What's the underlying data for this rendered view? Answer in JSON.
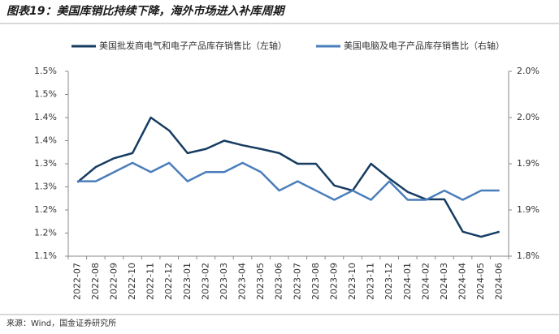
{
  "chart_data": {
    "type": "line",
    "title": "图表19：美国库销比持续下降，海外市场进入补库周期",
    "source": "来源：Wind，国金证券研究所",
    "categories": [
      "2022-07",
      "2022-08",
      "2022-09",
      "2022-10",
      "2022-11",
      "2022-12",
      "2023-01",
      "2023-02",
      "2023-03",
      "2023-04",
      "2023-05",
      "2023-06",
      "2023-07",
      "2023-08",
      "2023-09",
      "2023-10",
      "2023-11",
      "2023-12",
      "2024-01",
      "2024-02",
      "2024-03",
      "2024-04",
      "2024-05",
      "2024-06"
    ],
    "series": [
      {
        "name": "美国批发商电气和电子产品库存销售比（左轴）",
        "color": "#163c62",
        "axis": "y",
        "values": [
          1.26,
          1.293,
          1.312,
          1.323,
          1.4,
          1.372,
          1.323,
          1.332,
          1.35,
          1.34,
          1.332,
          1.323,
          1.3,
          1.3,
          1.253,
          1.242,
          1.3,
          1.268,
          1.239,
          1.223,
          1.223,
          1.153,
          1.142,
          1.153
        ]
      },
      {
        "name": "美国电脑及电子产品库存销售比（右轴）",
        "color": "#4a7ebb",
        "axis": "y2",
        "values": [
          1.881,
          1.881,
          1.891,
          1.901,
          1.891,
          1.901,
          1.881,
          1.891,
          1.891,
          1.901,
          1.891,
          1.871,
          1.881,
          1.871,
          1.861,
          1.871,
          1.861,
          1.881,
          1.861,
          1.861,
          1.871,
          1.861,
          1.871,
          1.871
        ]
      }
    ],
    "ylim": [
      1.1,
      1.5
    ],
    "yticks": [
      {
        "value": 1.1,
        "label": "1.1%"
      },
      {
        "value": 1.15,
        "label": "1.2%"
      },
      {
        "value": 1.2,
        "label": "1.2%"
      },
      {
        "value": 1.25,
        "label": "1.3%"
      },
      {
        "value": 1.3,
        "label": "1.3%"
      },
      {
        "value": 1.35,
        "label": "1.4%"
      },
      {
        "value": 1.4,
        "label": "1.4%"
      },
      {
        "value": 1.45,
        "label": "1.5%"
      },
      {
        "value": 1.5,
        "label": "1.5%"
      }
    ],
    "y2lim": [
      1.8,
      2.0
    ],
    "y2ticks": [
      {
        "value": 1.8,
        "label": "1.8%"
      },
      {
        "value": 1.85,
        "label": "1.9%"
      },
      {
        "value": 1.9,
        "label": "1.9%"
      },
      {
        "value": 1.95,
        "label": "2.0%"
      },
      {
        "value": 2.0,
        "label": "2.0%"
      }
    ],
    "legend": "top"
  }
}
